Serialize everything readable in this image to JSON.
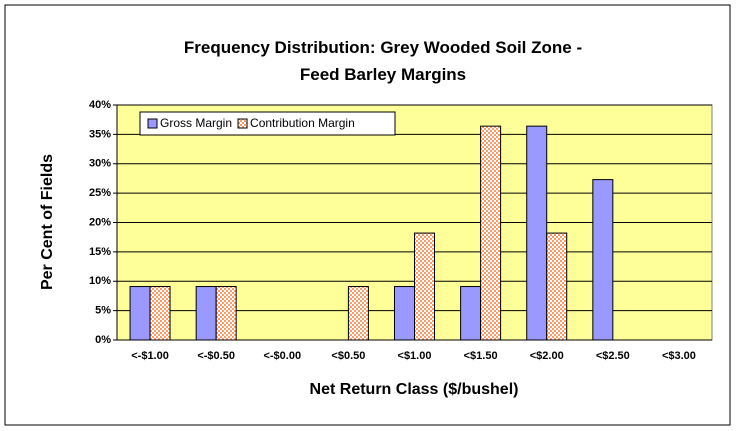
{
  "chart_data": {
    "type": "bar",
    "title": "Frequency Distribution: Grey Wooded Soil Zone - Feed Barley Margins",
    "x_label": "Net Return Class ($/bushel)",
    "y_label": "Per Cent of Fields",
    "categories": [
      "<-$1.00",
      "<-$0.50",
      "<-$0.00",
      "<$0.50",
      "<$1.00",
      "<$1.50",
      "<$2.00",
      "<$2.50",
      "<$3.00"
    ],
    "series": [
      {
        "name": "Gross Margin",
        "color": "#9999ff",
        "values": [
          9.1,
          9.1,
          0,
          0,
          9.1,
          9.1,
          36.4,
          27.3,
          0
        ]
      },
      {
        "name": "Contribution Margin",
        "color": "#ff9966",
        "values": [
          9.1,
          9.1,
          0,
          9.1,
          18.2,
          36.4,
          18.2,
          0,
          0
        ]
      }
    ],
    "ylim": [
      0,
      40
    ],
    "yticks": [
      {
        "value": 0,
        "label": "0%"
      },
      {
        "value": 5,
        "label": "5%"
      },
      {
        "value": 10,
        "label": "10%"
      },
      {
        "value": 15,
        "label": "15%"
      },
      {
        "value": 20,
        "label": "20%"
      },
      {
        "value": 25,
        "label": "25%"
      },
      {
        "value": 30,
        "label": "30%"
      },
      {
        "value": 35,
        "label": "35%"
      },
      {
        "value": 40,
        "label": "40%"
      }
    ],
    "grid": true,
    "legend": "top-left",
    "plot_background": "#ffff99"
  }
}
